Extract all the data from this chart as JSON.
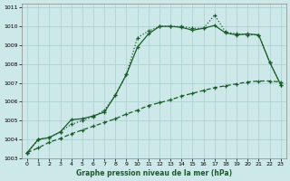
{
  "title": "Graphe pression niveau de la mer (hPa)",
  "bg_color": "#cce8e8",
  "grid_color": "#aacfcf",
  "line_color": "#1a5c2a",
  "xlim": [
    -0.5,
    23.5
  ],
  "ylim": [
    1003,
    1011.2
  ],
  "xticks": [
    0,
    1,
    2,
    3,
    4,
    5,
    6,
    7,
    8,
    9,
    10,
    11,
    12,
    13,
    14,
    15,
    16,
    17,
    18,
    19,
    20,
    21,
    22,
    23
  ],
  "yticks": [
    1003,
    1004,
    1005,
    1006,
    1007,
    1008,
    1009,
    1010,
    1011
  ],
  "line_flat_x": [
    0,
    1,
    2,
    3,
    4,
    5,
    6,
    7,
    8,
    9,
    10,
    11,
    12,
    13,
    14,
    15,
    16,
    17,
    18,
    19,
    20,
    21,
    22,
    23
  ],
  "line_flat_y": [
    1003.3,
    1003.55,
    1003.85,
    1004.05,
    1004.3,
    1004.5,
    1004.7,
    1004.9,
    1005.1,
    1005.35,
    1005.55,
    1005.8,
    1005.95,
    1006.1,
    1006.3,
    1006.45,
    1006.6,
    1006.75,
    1006.85,
    1006.95,
    1007.05,
    1007.1,
    1007.1,
    1007.05
  ],
  "line_dotted_x": [
    0,
    1,
    2,
    3,
    4,
    5,
    6,
    7,
    8,
    9,
    10,
    11,
    12,
    13,
    14,
    15,
    16,
    17,
    18,
    19,
    20,
    21,
    22,
    23
  ],
  "line_dotted_y": [
    1003.3,
    1004.0,
    1004.1,
    1004.4,
    1004.8,
    1005.0,
    1005.2,
    1005.55,
    1006.35,
    1007.45,
    1009.4,
    1009.75,
    1010.0,
    1010.0,
    1010.0,
    1009.9,
    1009.9,
    1010.6,
    1009.7,
    1009.6,
    1009.55,
    1009.55,
    1008.1,
    1006.9
  ],
  "line_solid_x": [
    0,
    1,
    2,
    3,
    4,
    5,
    6,
    7,
    8,
    9,
    10,
    11,
    12,
    13,
    14,
    15,
    16,
    17,
    18,
    19,
    20,
    21,
    22,
    23
  ],
  "line_solid_y": [
    1003.3,
    1004.0,
    1004.1,
    1004.4,
    1005.05,
    1005.1,
    1005.25,
    1005.45,
    1006.35,
    1007.45,
    1008.9,
    1009.6,
    1010.0,
    1010.0,
    1009.95,
    1009.8,
    1009.9,
    1010.05,
    1009.65,
    1009.55,
    1009.6,
    1009.55,
    1008.1,
    1006.9
  ]
}
